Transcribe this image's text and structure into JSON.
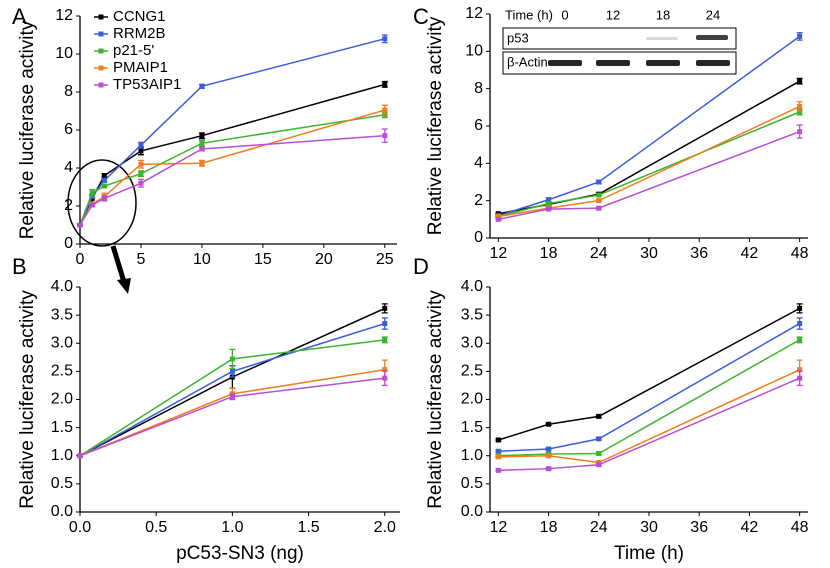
{
  "chart_data": [
    {
      "type": "line",
      "panel_label": "A",
      "y_label": "Relative luciferase activity",
      "x": [
        0,
        1,
        2,
        5,
        10,
        25
      ],
      "xlim": [
        0,
        26
      ],
      "xticks": [
        0,
        5,
        10,
        15,
        20,
        25
      ],
      "ylim": [
        0,
        12
      ],
      "yticks": [
        0,
        2,
        4,
        6,
        8,
        10,
        12
      ],
      "legend": "top-left",
      "series": [
        {
          "name": "CCNG1",
          "color": "#000000",
          "values": [
            1,
            2.4,
            3.6,
            4.9,
            5.7,
            8.4
          ],
          "errors": [
            0.05,
            0.2,
            0.08,
            0.2,
            0.15,
            0.15
          ]
        },
        {
          "name": "RRM2B",
          "color": "#3b5fd9",
          "values": [
            1,
            2.5,
            3.35,
            5.2,
            8.3,
            10.8
          ],
          "errors": [
            0.05,
            0.1,
            0.1,
            0.15,
            0.1,
            0.2
          ]
        },
        {
          "name": "p21-5'",
          "color": "#3cb52c",
          "values": [
            1,
            2.7,
            3.05,
            3.7,
            5.3,
            6.8
          ],
          "errors": [
            0.05,
            0.17,
            0.05,
            0.15,
            0.15,
            0.15
          ]
        },
        {
          "name": "PMAIP1",
          "color": "#f07d1e",
          "values": [
            1,
            2.1,
            2.5,
            4.2,
            4.25,
            7.05
          ],
          "errors": [
            0.05,
            0.1,
            0.17,
            0.2,
            0.15,
            0.25
          ]
        },
        {
          "name": "TP53AIP1",
          "color": "#b84fd6",
          "values": [
            1,
            2.05,
            2.4,
            3.2,
            5.0,
            5.7
          ],
          "errors": [
            0.05,
            0.05,
            0.13,
            0.2,
            0.1,
            0.35
          ]
        }
      ]
    },
    {
      "type": "line",
      "panel_label": "B",
      "y_label": "Relative luciferase activity",
      "x_label": "pC53-SN3 (ng)",
      "x": [
        0,
        1,
        2
      ],
      "xlim": [
        0,
        2.1
      ],
      "xticks": [
        {
          "value": 0,
          "label": "0.0"
        },
        {
          "value": 0.5,
          "label": "0.5"
        },
        {
          "value": 1,
          "label": "1.0"
        },
        {
          "value": 1.5,
          "label": "1.5"
        },
        {
          "value": 2,
          "label": "2.0"
        }
      ],
      "ylim": [
        0,
        4
      ],
      "yticks": [
        {
          "value": 0,
          "label": "0.0"
        },
        {
          "value": 0.5,
          "label": "0.5"
        },
        {
          "value": 1,
          "label": "1.0"
        },
        {
          "value": 1.5,
          "label": "1.5"
        },
        {
          "value": 2,
          "label": "2.0"
        },
        {
          "value": 2.5,
          "label": "2.5"
        },
        {
          "value": 3,
          "label": "3.0"
        },
        {
          "value": 3.5,
          "label": "3.5"
        },
        {
          "value": 4,
          "label": "4.0"
        }
      ],
      "series": [
        {
          "color": "#000000",
          "values": [
            1,
            2.4,
            3.62
          ],
          "errors": [
            0.02,
            0.2,
            0.08
          ]
        },
        {
          "color": "#3b5fd9",
          "values": [
            1,
            2.5,
            3.35
          ],
          "errors": [
            0.02,
            0.1,
            0.1
          ]
        },
        {
          "color": "#3cb52c",
          "values": [
            1,
            2.72,
            3.06
          ],
          "errors": [
            0.02,
            0.17,
            0.05
          ]
        },
        {
          "color": "#f07d1e",
          "values": [
            1,
            2.1,
            2.53
          ],
          "errors": [
            0.02,
            0.1,
            0.17
          ]
        },
        {
          "color": "#b84fd6",
          "values": [
            1,
            2.05,
            2.38
          ],
          "errors": [
            0.02,
            0.05,
            0.13
          ]
        }
      ]
    },
    {
      "type": "line",
      "panel_label": "C",
      "y_label": "Relative luciferase activity",
      "x": [
        12,
        18,
        24,
        48
      ],
      "xlim": [
        11,
        49
      ],
      "xticks": [
        12,
        18,
        24,
        30,
        36,
        42,
        48
      ],
      "ylim": [
        0,
        12
      ],
      "yticks": [
        0,
        2,
        4,
        6,
        8,
        10,
        12
      ],
      "inset": {
        "title": "Time (h)",
        "lanes": [
          "0",
          "12",
          "18",
          "24"
        ],
        "rows": [
          "p53",
          "β-Actin"
        ]
      },
      "series": [
        {
          "color": "#000000",
          "values": [
            1.3,
            1.8,
            2.35,
            8.4
          ],
          "errors": [
            0.05,
            0.1,
            0.08,
            0.15
          ]
        },
        {
          "color": "#3b5fd9",
          "values": [
            1.2,
            2.05,
            3.0,
            10.8
          ],
          "errors": [
            0.05,
            0.1,
            0.1,
            0.2
          ]
        },
        {
          "color": "#3cb52c",
          "values": [
            1.15,
            1.85,
            2.3,
            6.75
          ],
          "errors": [
            0.05,
            0.08,
            0.05,
            0.15
          ]
        },
        {
          "color": "#f07d1e",
          "values": [
            1.15,
            1.6,
            2.0,
            7.05
          ],
          "errors": [
            0.05,
            0.05,
            0.05,
            0.25
          ]
        },
        {
          "color": "#b84fd6",
          "values": [
            1.0,
            1.55,
            1.6,
            5.7
          ],
          "errors": [
            0.05,
            0.05,
            0.05,
            0.35
          ]
        }
      ]
    },
    {
      "type": "line",
      "panel_label": "D",
      "y_label": "Relative luciferase activity",
      "x_label": "Time (h)",
      "x": [
        12,
        18,
        24,
        48
      ],
      "xlim": [
        11,
        49
      ],
      "xticks": [
        12,
        18,
        24,
        30,
        36,
        42,
        48
      ],
      "ylim": [
        0,
        4
      ],
      "yticks": [
        {
          "value": 0,
          "label": "0.0"
        },
        {
          "value": 0.5,
          "label": "0.5"
        },
        {
          "value": 1,
          "label": "1.0"
        },
        {
          "value": 1.5,
          "label": "1.5"
        },
        {
          "value": 2,
          "label": "2.0"
        },
        {
          "value": 2.5,
          "label": "2.5"
        },
        {
          "value": 3,
          "label": "3.0"
        },
        {
          "value": 3.5,
          "label": "3.5"
        },
        {
          "value": 4,
          "label": "4.0"
        }
      ],
      "series": [
        {
          "color": "#000000",
          "values": [
            1.28,
            1.56,
            1.7,
            3.62
          ],
          "errors": [
            0.02,
            0.02,
            0.02,
            0.08
          ]
        },
        {
          "color": "#3b5fd9",
          "values": [
            1.08,
            1.12,
            1.3,
            3.35
          ],
          "errors": [
            0.02,
            0.02,
            0.02,
            0.1
          ]
        },
        {
          "color": "#3cb52c",
          "values": [
            1.0,
            1.03,
            1.04,
            3.06
          ],
          "errors": [
            0.02,
            0.02,
            0.02,
            0.05
          ]
        },
        {
          "color": "#f07d1e",
          "values": [
            0.98,
            1.0,
            0.88,
            2.53
          ],
          "errors": [
            0.02,
            0.02,
            0.02,
            0.17
          ]
        },
        {
          "color": "#b84fd6",
          "values": [
            0.74,
            0.77,
            0.84,
            2.38
          ],
          "errors": [
            0.02,
            0.02,
            0.02,
            0.13
          ]
        }
      ]
    }
  ]
}
